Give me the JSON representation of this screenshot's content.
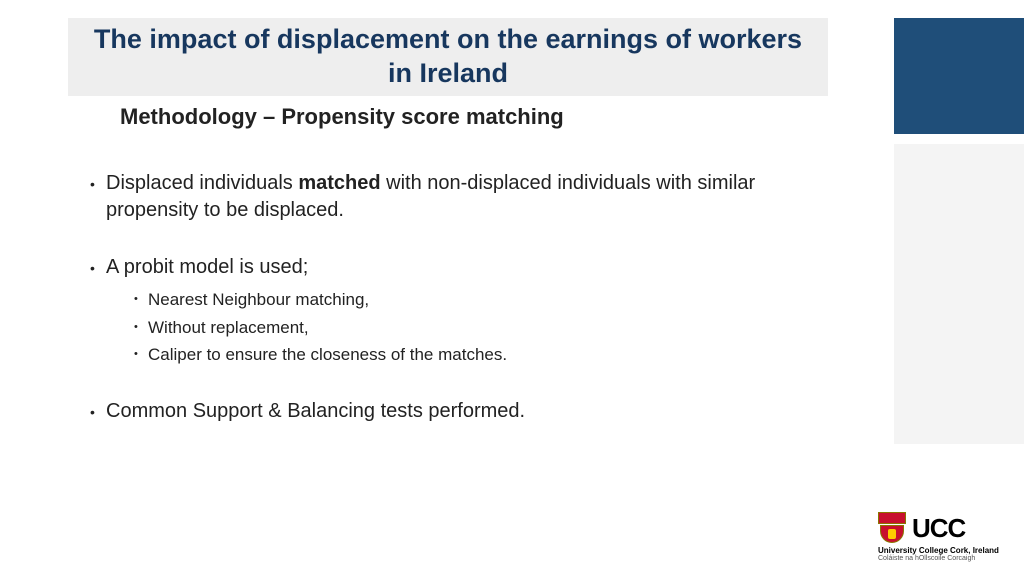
{
  "colors": {
    "title_bg": "#eeeeee",
    "title_color": "#17375e",
    "side_dark": "#1f4e79",
    "side_light": "#f4f4f4",
    "text": "#222222",
    "crest_red": "#c8102e",
    "crest_gold": "#ffcc00"
  },
  "title": "The impact of displacement on the earnings of workers in Ireland",
  "subtitle": "Methodology – Propensity score matching",
  "bullets": [
    {
      "pre": "Displaced individuals ",
      "bold": "matched",
      "post": " with non-displaced individuals with similar propensity to be displaced.",
      "sub": []
    },
    {
      "pre": "A probit model is used;",
      "bold": "",
      "post": "",
      "sub": [
        "Nearest Neighbour matching,",
        "Without replacement,",
        "Caliper to ensure the closeness of the matches."
      ]
    },
    {
      "pre": "Common Support & Balancing tests performed.",
      "bold": "",
      "post": "",
      "sub": []
    }
  ],
  "logo": {
    "acronym": "UCC",
    "line1": "University College Cork, Ireland",
    "line2": "Coláiste na hOllscoile Corcaigh"
  }
}
